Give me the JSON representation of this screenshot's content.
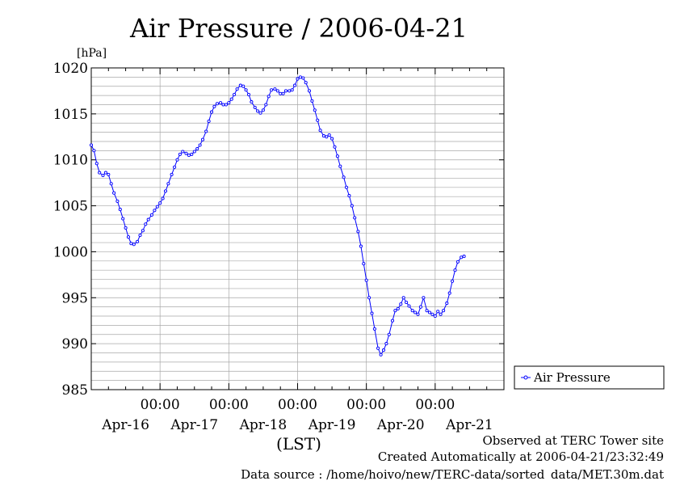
{
  "chart_data": {
    "type": "line",
    "title": "Air Pressure / 2006-04-21",
    "ylabel": "[hPa]",
    "xlabel": "(LST)",
    "ylim": [
      985,
      1020
    ],
    "yticks": [
      985,
      990,
      995,
      1000,
      1005,
      1010,
      1015,
      1020
    ],
    "y_minor_step": 1,
    "xlim_days": [
      15.0,
      21.0
    ],
    "x_major_ticks": [
      {
        "day": 16,
        "time_label": "00:00",
        "date_label": "Apr-16"
      },
      {
        "day": 17,
        "time_label": "00:00",
        "date_label": "Apr-17"
      },
      {
        "day": 18,
        "time_label": "00:00",
        "date_label": "Apr-18"
      },
      {
        "day": 19,
        "time_label": "00:00",
        "date_label": "Apr-19"
      },
      {
        "day": 20,
        "time_label": "00:00",
        "date_label": "Apr-20"
      },
      {
        "day": 21,
        "time_label": "",
        "date_label": "Apr-21"
      }
    ],
    "grid": true,
    "legend_position": "right",
    "series": [
      {
        "name": "Air Pressure",
        "color": "#0000ff",
        "marker": "circle",
        "points": [
          [
            15.0,
            1011.6
          ],
          [
            15.04,
            1011.0
          ],
          [
            15.08,
            1009.6
          ],
          [
            15.12,
            1008.6
          ],
          [
            15.17,
            1008.3
          ],
          [
            15.21,
            1008.6
          ],
          [
            15.25,
            1008.4
          ],
          [
            15.29,
            1007.4
          ],
          [
            15.33,
            1006.4
          ],
          [
            15.38,
            1005.5
          ],
          [
            15.42,
            1004.6
          ],
          [
            15.46,
            1003.6
          ],
          [
            15.5,
            1002.6
          ],
          [
            15.54,
            1001.6
          ],
          [
            15.58,
            1000.9
          ],
          [
            15.62,
            1000.8
          ],
          [
            15.67,
            1001.1
          ],
          [
            15.71,
            1001.8
          ],
          [
            15.75,
            1002.3
          ],
          [
            15.79,
            1003.0
          ],
          [
            15.83,
            1003.5
          ],
          [
            15.88,
            1004.0
          ],
          [
            15.92,
            1004.5
          ],
          [
            15.96,
            1004.9
          ],
          [
            16.0,
            1005.3
          ],
          [
            16.04,
            1005.8
          ],
          [
            16.08,
            1006.6
          ],
          [
            16.12,
            1007.4
          ],
          [
            16.17,
            1008.4
          ],
          [
            16.21,
            1009.2
          ],
          [
            16.25,
            1010.0
          ],
          [
            16.29,
            1010.6
          ],
          [
            16.33,
            1010.9
          ],
          [
            16.38,
            1010.7
          ],
          [
            16.42,
            1010.5
          ],
          [
            16.46,
            1010.6
          ],
          [
            16.5,
            1010.9
          ],
          [
            16.54,
            1011.2
          ],
          [
            16.58,
            1011.6
          ],
          [
            16.62,
            1012.2
          ],
          [
            16.67,
            1013.1
          ],
          [
            16.71,
            1014.2
          ],
          [
            16.75,
            1015.2
          ],
          [
            16.79,
            1015.8
          ],
          [
            16.83,
            1016.1
          ],
          [
            16.88,
            1016.2
          ],
          [
            16.92,
            1016.0
          ],
          [
            16.96,
            1016.0
          ],
          [
            17.0,
            1016.2
          ],
          [
            17.04,
            1016.6
          ],
          [
            17.08,
            1017.1
          ],
          [
            17.12,
            1017.7
          ],
          [
            17.17,
            1018.1
          ],
          [
            17.21,
            1018.0
          ],
          [
            17.25,
            1017.6
          ],
          [
            17.29,
            1017.1
          ],
          [
            17.33,
            1016.3
          ],
          [
            17.38,
            1015.7
          ],
          [
            17.42,
            1015.3
          ],
          [
            17.46,
            1015.1
          ],
          [
            17.5,
            1015.4
          ],
          [
            17.54,
            1016.0
          ],
          [
            17.58,
            1016.9
          ],
          [
            17.62,
            1017.6
          ],
          [
            17.67,
            1017.7
          ],
          [
            17.71,
            1017.5
          ],
          [
            17.75,
            1017.2
          ],
          [
            17.79,
            1017.2
          ],
          [
            17.83,
            1017.5
          ],
          [
            17.88,
            1017.5
          ],
          [
            17.92,
            1017.6
          ],
          [
            17.96,
            1018.1
          ],
          [
            18.0,
            1018.8
          ],
          [
            18.04,
            1019.0
          ],
          [
            18.08,
            1018.9
          ],
          [
            18.12,
            1018.4
          ],
          [
            18.17,
            1017.5
          ],
          [
            18.21,
            1016.4
          ],
          [
            18.25,
            1015.4
          ],
          [
            18.29,
            1014.3
          ],
          [
            18.33,
            1013.2
          ],
          [
            18.38,
            1012.6
          ],
          [
            18.42,
            1012.5
          ],
          [
            18.46,
            1012.7
          ],
          [
            18.5,
            1012.3
          ],
          [
            18.54,
            1011.4
          ],
          [
            18.58,
            1010.4
          ],
          [
            18.62,
            1009.3
          ],
          [
            18.67,
            1008.1
          ],
          [
            18.71,
            1007.0
          ],
          [
            18.75,
            1006.1
          ],
          [
            18.79,
            1005.0
          ],
          [
            18.83,
            1003.7
          ],
          [
            18.88,
            1002.2
          ],
          [
            18.92,
            1000.6
          ],
          [
            18.96,
            998.7
          ],
          [
            19.0,
            996.9
          ],
          [
            19.04,
            995.0
          ],
          [
            19.08,
            993.3
          ],
          [
            19.12,
            991.6
          ],
          [
            19.17,
            989.5
          ],
          [
            19.21,
            988.8
          ],
          [
            19.25,
            989.3
          ],
          [
            19.29,
            990.0
          ],
          [
            19.33,
            991.0
          ],
          [
            19.38,
            992.5
          ],
          [
            19.42,
            993.6
          ],
          [
            19.46,
            993.8
          ],
          [
            19.5,
            994.3
          ],
          [
            19.54,
            995.0
          ],
          [
            19.58,
            994.5
          ],
          [
            19.62,
            994.1
          ],
          [
            19.67,
            993.6
          ],
          [
            19.71,
            993.4
          ],
          [
            19.75,
            993.2
          ],
          [
            19.79,
            994.0
          ],
          [
            19.83,
            995.0
          ],
          [
            19.88,
            993.6
          ],
          [
            19.92,
            993.4
          ],
          [
            19.96,
            993.2
          ],
          [
            20.0,
            993.0
          ],
          [
            20.04,
            993.5
          ],
          [
            20.08,
            993.2
          ],
          [
            20.12,
            993.6
          ],
          [
            20.17,
            994.4
          ],
          [
            20.21,
            995.5
          ],
          [
            20.25,
            996.8
          ],
          [
            20.29,
            998.0
          ],
          [
            20.33,
            998.9
          ],
          [
            20.38,
            999.4
          ],
          [
            20.42,
            999.5
          ]
        ]
      }
    ],
    "legend": [
      {
        "label": "Air Pressure",
        "color": "#0000ff"
      }
    ]
  },
  "footer": {
    "observed": "Observed at TERC Tower site",
    "created": "Created Automatically at 2006-04-21/23:32:49",
    "source": "Data source : /home/hoivo/new/TERC-data/sorted_data/MET.30m.dat"
  }
}
